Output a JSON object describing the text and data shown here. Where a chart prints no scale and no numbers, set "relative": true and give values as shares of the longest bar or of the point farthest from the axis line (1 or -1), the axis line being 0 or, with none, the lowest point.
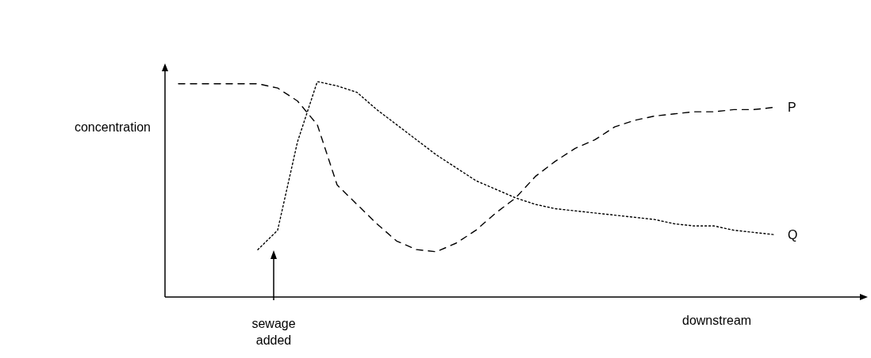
{
  "chart_data": {
    "type": "line",
    "relative": true,
    "xlabel": "downstream",
    "ylabel": "concentration",
    "annotations": [
      "sewage added"
    ],
    "legend": false,
    "grid": false,
    "marker": "none",
    "categories": [
      null,
      null,
      null,
      null,
      null,
      null,
      null,
      null,
      null,
      null,
      null,
      null,
      null,
      null,
      null,
      null,
      null,
      null,
      null,
      null,
      null,
      null,
      null,
      null,
      null,
      null,
      null,
      null,
      null,
      null,
      null
    ],
    "series": [
      {
        "name": "P",
        "color": "#000000",
        "line_style": "dashed",
        "values": [
          0.99,
          0.99,
          0.99,
          0.99,
          0.99,
          0.97,
          0.91,
          0.8,
          0.52,
          0.43,
          0.34,
          0.26,
          0.22,
          0.21,
          0.25,
          0.31,
          0.39,
          0.46,
          0.56,
          0.63,
          0.69,
          0.73,
          0.79,
          0.82,
          0.84,
          0.85,
          0.86,
          0.86,
          0.87,
          0.87,
          0.88
        ]
      },
      {
        "name": "Q",
        "color": "#000000",
        "line_style": "dotted",
        "values": [
          null,
          null,
          null,
          null,
          0.22,
          0.31,
          0.72,
          1,
          0.98,
          0.95,
          0.87,
          0.8,
          0.73,
          0.66,
          0.6,
          0.54,
          0.5,
          0.46,
          0.43,
          0.41,
          0.4,
          0.39,
          0.38,
          0.37,
          0.36,
          0.34,
          0.33,
          0.33,
          0.31,
          0.3,
          0.29
        ]
      }
    ]
  }
}
